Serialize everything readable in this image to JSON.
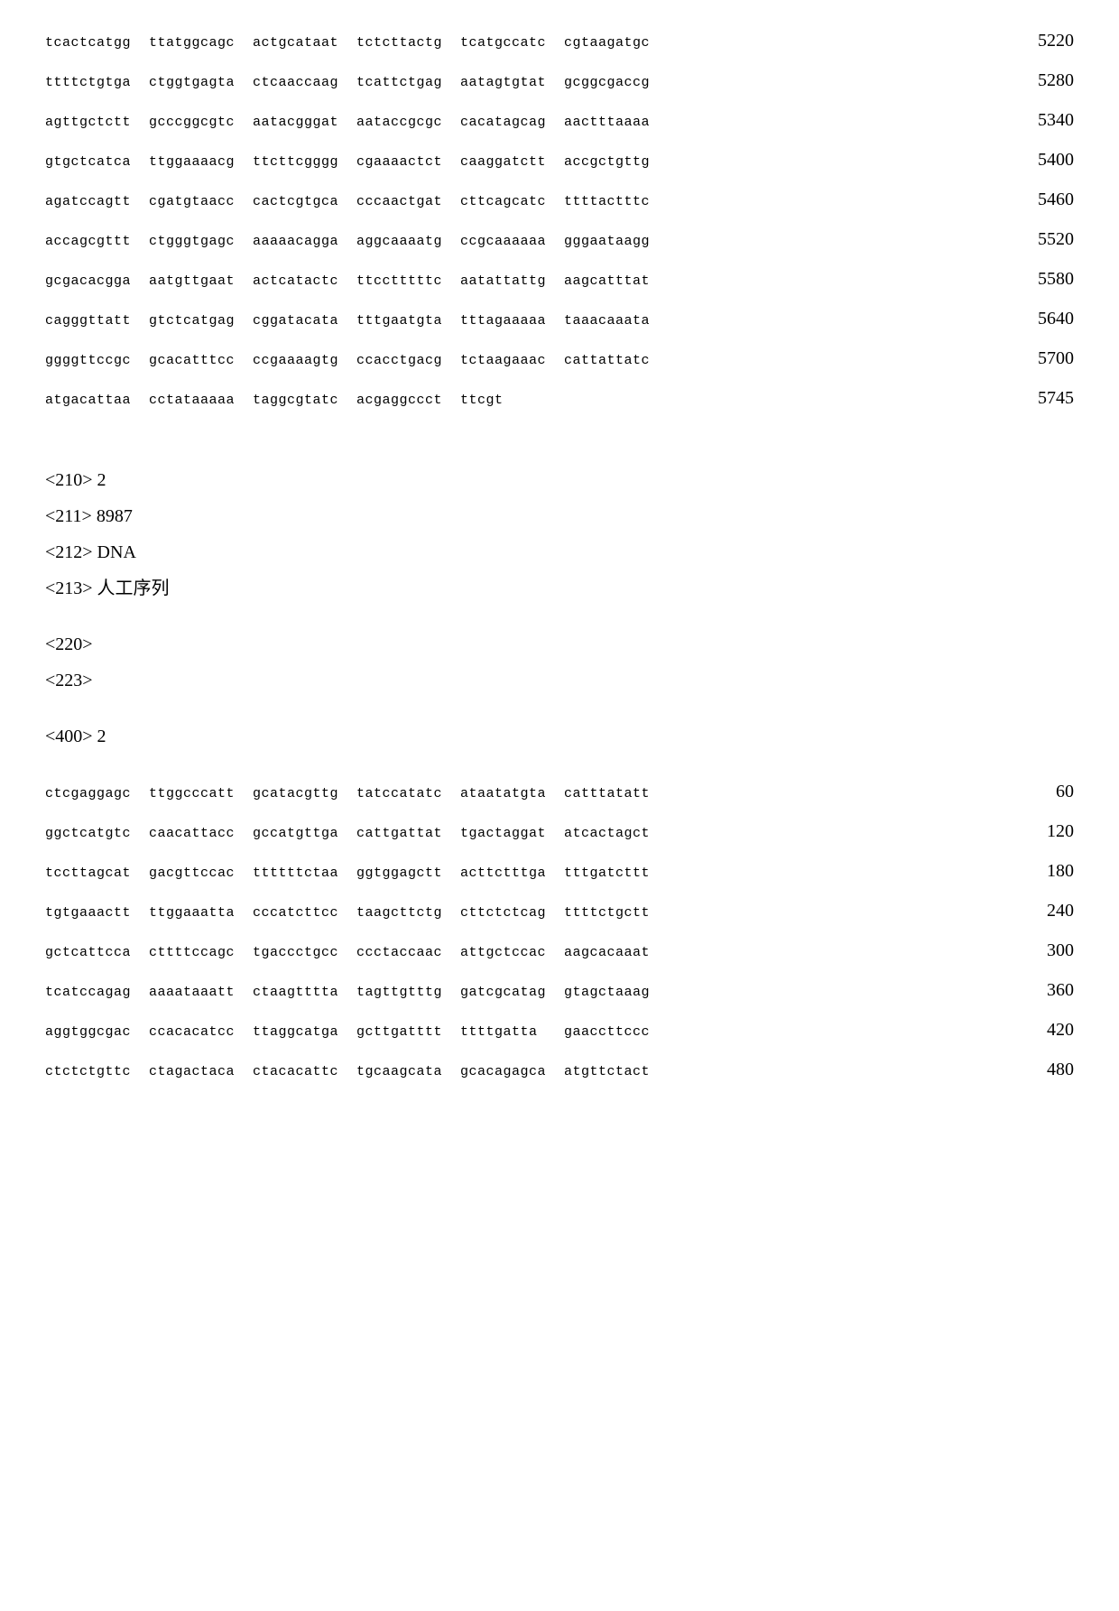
{
  "seq1": {
    "lines": [
      {
        "blocks": [
          "tcactcatgg",
          "ttatggcagc",
          "actgcataat",
          "tctcttactg",
          "tcatgccatc",
          "cgtaagatgc"
        ],
        "num": "5220"
      },
      {
        "blocks": [
          "ttttctgtga",
          "ctggtgagta",
          "ctcaaccaag",
          "tcattctgag",
          "aatagtgtat",
          "gcggcgaccg"
        ],
        "num": "5280"
      },
      {
        "blocks": [
          "agttgctctt",
          "gcccggcgtc",
          "aatacgggat",
          "aataccgcgc",
          "cacatagcag",
          "aactttaaaa"
        ],
        "num": "5340"
      },
      {
        "blocks": [
          "gtgctcatca",
          "ttggaaaacg",
          "ttcttcgggg",
          "cgaaaactct",
          "caaggatctt",
          "accgctgttg"
        ],
        "num": "5400"
      },
      {
        "blocks": [
          "agatccagtt",
          "cgatgtaacc",
          "cactcgtgca",
          "cccaactgat",
          "cttcagcatc",
          "ttttactttc"
        ],
        "num": "5460"
      },
      {
        "blocks": [
          "accagcgttt",
          "ctgggtgagc",
          "aaaaacagga",
          "aggcaaaatg",
          "ccgcaaaaaa",
          "gggaataagg"
        ],
        "num": "5520"
      },
      {
        "blocks": [
          "gcgacacgga",
          "aatgttgaat",
          "actcatactc",
          "ttcctttttc",
          "aatattattg",
          "aagcatttat"
        ],
        "num": "5580"
      },
      {
        "blocks": [
          "cagggttatt",
          "gtctcatgag",
          "cggatacata",
          "tttgaatgta",
          "tttagaaaaa",
          "taaacaaata"
        ],
        "num": "5640"
      },
      {
        "blocks": [
          "ggggttccgc",
          "gcacatttcc",
          "ccgaaaagtg",
          "ccacctgacg",
          "tctaagaaac",
          "cattattatc"
        ],
        "num": "5700"
      },
      {
        "blocks": [
          "atgacattaa",
          "cctataaaaa",
          "taggcgtatc",
          "acgaggccct",
          "ttcgt",
          ""
        ],
        "num": "5745"
      }
    ]
  },
  "meta": {
    "m210": "<210>   2",
    "m211": "<211>  8987",
    "m212": "<212>   DNA",
    "m213": "<213>  人工序列",
    "m220": "<220>",
    "m223": "<223>",
    "m400": "<400>   2"
  },
  "seq2": {
    "lines": [
      {
        "blocks": [
          "ctcgaggagc",
          "ttggcccatt",
          "gcatacgttg",
          "tatccatatc",
          "ataatatgta",
          "catttatatt"
        ],
        "num": "60"
      },
      {
        "blocks": [
          "ggctcatgtc",
          "caacattacc",
          "gccatgttga",
          "cattgattat",
          "tgactaggat",
          "atcactagct"
        ],
        "num": "120"
      },
      {
        "blocks": [
          "tccttagcat",
          "gacgttccac",
          "ttttttctaa",
          "ggtggagctt",
          "acttctttga",
          "tttgatcttt"
        ],
        "num": "180"
      },
      {
        "blocks": [
          "tgtgaaactt",
          "ttggaaatta",
          "cccatcttcc",
          "taagcttctg",
          "cttctctcag",
          "ttttctgctt"
        ],
        "num": "240"
      },
      {
        "blocks": [
          "gctcattcca",
          "cttttccagc",
          "tgaccctgcc",
          "ccctaccaac",
          "attgctccac",
          "aagcacaaat"
        ],
        "num": "300"
      },
      {
        "blocks": [
          "tcatccagag",
          "aaaataaatt",
          "ctaagtttta",
          "tagttgtttg",
          "gatcgcatag",
          "gtagctaaag"
        ],
        "num": "360"
      },
      {
        "blocks": [
          "aggtggcgac",
          "ccacacatcc",
          "ttaggcatga",
          "gcttgatttt",
          "ttttgatta",
          "gaaccttccc"
        ],
        "num": "420"
      },
      {
        "blocks": [
          "ctctctgttc",
          "ctagactaca",
          "ctacacattc",
          "tgcaagcata",
          "gcacagagca",
          "atgttctact"
        ],
        "num": "480"
      }
    ]
  }
}
